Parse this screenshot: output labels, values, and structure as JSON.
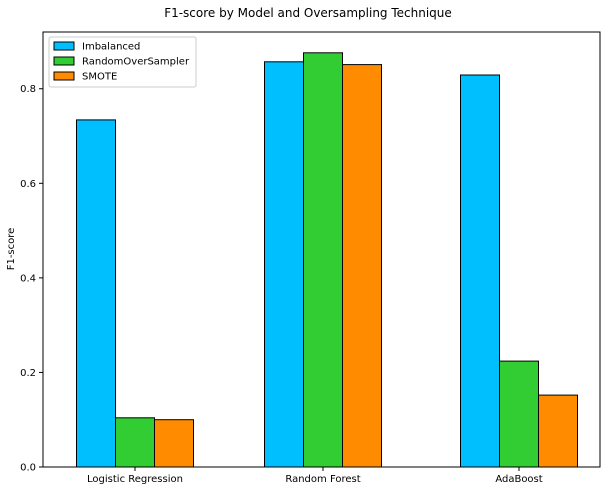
{
  "chart_data": {
    "type": "bar",
    "title": "F1-score by Model and Oversampling Technique",
    "xlabel": "",
    "ylabel": "F1-score",
    "categories": [
      "Logistic Regression",
      "Random Forest",
      "AdaBoost"
    ],
    "series": [
      {
        "name": "Imbalanced",
        "color": "#00bfff",
        "values": [
          0.734,
          0.857,
          0.829
        ]
      },
      {
        "name": "RandomOverSampler",
        "color": "#32cd32",
        "values": [
          0.104,
          0.876,
          0.224
        ]
      },
      {
        "name": "SMOTE",
        "color": "#ff8c00",
        "values": [
          0.1,
          0.851,
          0.152
        ]
      }
    ],
    "ylim": [
      0,
      0.92
    ],
    "yticks": [
      0.0,
      0.2,
      0.4,
      0.6,
      0.8
    ],
    "ytick_labels": [
      "0.0",
      "0.2",
      "0.4",
      "0.6",
      "0.8"
    ],
    "grid": false,
    "legend_position": "top-left",
    "bar_edge_color": "#000000"
  }
}
